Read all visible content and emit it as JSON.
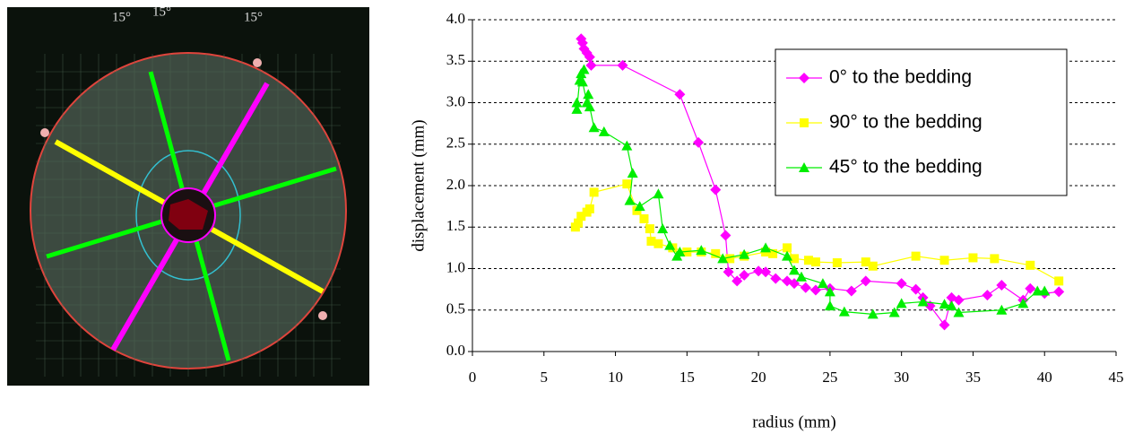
{
  "photo_labels": [
    "15°",
    "15°",
    "15°"
  ],
  "chart_data": {
    "type": "line",
    "xlabel": "radius (mm)",
    "ylabel": "displacement (mm)",
    "xlim": [
      0,
      45
    ],
    "xticks": [
      0,
      5,
      10,
      15,
      20,
      25,
      30,
      35,
      40,
      45
    ],
    "ylim": [
      0,
      4
    ],
    "yticks": [
      {
        "value": 0,
        "label": "0.0"
      },
      0.5,
      {
        "value": 1,
        "label": "1.0"
      },
      1.5,
      {
        "value": 2,
        "label": "2.0"
      },
      2.5,
      {
        "value": 3,
        "label": "3.0"
      },
      3.5,
      {
        "value": 4,
        "label": "4.0"
      }
    ],
    "grid": "y-dashed",
    "legend": "upper-right",
    "series": [
      {
        "name": "0° to the bedding",
        "color": "#ff00ff",
        "marker": "diamond",
        "x": [
          7.6,
          7.7,
          7.8,
          8.0,
          8.2,
          8.3,
          10.5,
          14.5,
          15.8,
          17.0,
          17.7,
          17.9,
          18.5,
          19.0,
          20.0,
          20.5,
          21.2,
          22.0,
          22.5,
          23.3,
          24.0,
          25.0,
          26.5,
          27.5,
          30.0,
          31.0,
          31.5,
          32.0,
          33.0,
          33.5,
          34.0,
          36.0,
          37.0,
          38.5,
          39.0,
          40.0,
          41.0
        ],
        "values": [
          3.77,
          3.72,
          3.65,
          3.6,
          3.55,
          3.45,
          3.45,
          3.1,
          2.52,
          1.95,
          1.4,
          0.96,
          0.85,
          0.92,
          0.97,
          0.96,
          0.88,
          0.85,
          0.82,
          0.77,
          0.74,
          0.76,
          0.73,
          0.85,
          0.82,
          0.75,
          0.65,
          0.55,
          0.32,
          0.65,
          0.62,
          0.68,
          0.8,
          0.62,
          0.76,
          0.7,
          0.72
        ]
      },
      {
        "name": "90° to the bedding",
        "color": "#ffff00",
        "marker": "square",
        "x": [
          7.2,
          7.4,
          7.6,
          8.0,
          8.2,
          8.5,
          10.8,
          11.5,
          12.0,
          12.4,
          12.5,
          13.0,
          14.0,
          15.0,
          16.0,
          17.0,
          18.0,
          19.0,
          20.5,
          21.0,
          22.0,
          22.5,
          23.5,
          24.0,
          25.5,
          27.5,
          28.0,
          31.0,
          33.0,
          35.0,
          36.5,
          39.0,
          41.0
        ],
        "values": [
          1.5,
          1.55,
          1.63,
          1.68,
          1.72,
          1.92,
          2.02,
          1.7,
          1.6,
          1.48,
          1.33,
          1.3,
          1.25,
          1.2,
          1.2,
          1.18,
          1.12,
          1.15,
          1.2,
          1.18,
          1.25,
          1.12,
          1.1,
          1.08,
          1.07,
          1.08,
          1.03,
          1.15,
          1.1,
          1.13,
          1.12,
          1.04,
          0.85
        ]
      },
      {
        "name": "45° to the bedding",
        "color": "#00ee00",
        "marker": "triangle",
        "x": [
          7.3,
          7.3,
          7.5,
          7.6,
          7.8,
          7.7,
          8.0,
          8.1,
          8.2,
          8.5,
          9.2,
          10.8,
          11.2,
          11.0,
          11.7,
          13.0,
          13.3,
          13.8,
          14.3,
          14.5,
          16.0,
          17.5,
          19.0,
          20.5,
          22.0,
          22.5,
          23.0,
          24.5,
          25.0,
          25.0,
          26.0,
          28.0,
          29.5,
          30.0,
          31.5,
          33.0,
          33.5,
          34.0,
          37.0,
          38.5,
          39.5,
          40.0
        ],
        "values": [
          3.0,
          2.92,
          3.27,
          3.35,
          3.4,
          3.25,
          3.0,
          3.1,
          2.95,
          2.7,
          2.65,
          2.48,
          2.15,
          1.82,
          1.75,
          1.9,
          1.48,
          1.28,
          1.15,
          1.2,
          1.22,
          1.12,
          1.17,
          1.25,
          1.15,
          0.98,
          0.9,
          0.82,
          0.72,
          0.55,
          0.48,
          0.45,
          0.47,
          0.58,
          0.6,
          0.57,
          0.55,
          0.47,
          0.5,
          0.58,
          0.73,
          0.73
        ]
      }
    ]
  }
}
